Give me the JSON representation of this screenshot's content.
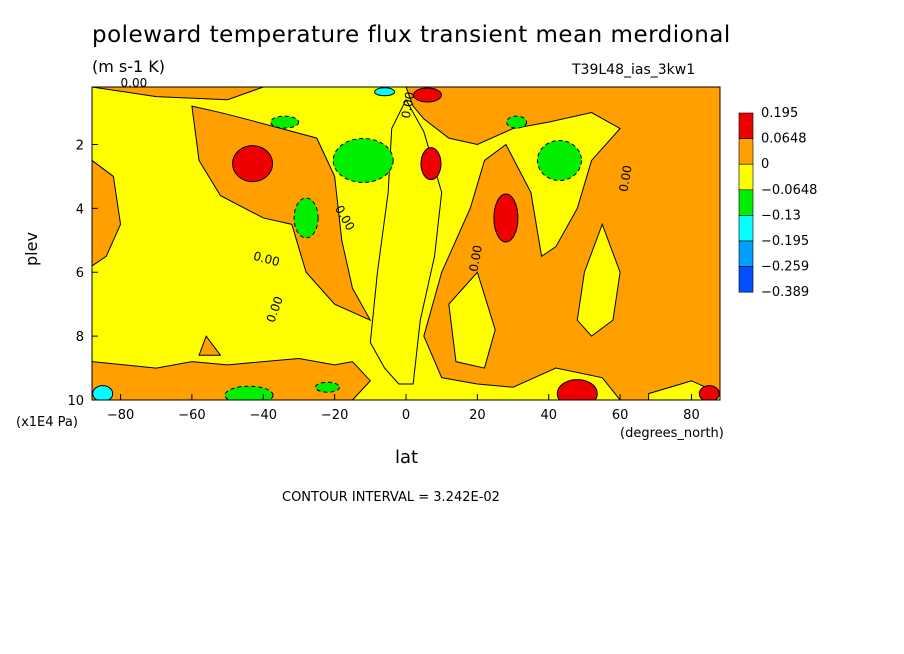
{
  "chart_data": {
    "type": "heatmap",
    "title": "poleward temperature flux transient mean merdional",
    "units": "(m s-1 K)",
    "run_label": "T39L48_ias_3kw1",
    "xlabel": "lat",
    "ylabel": "plev",
    "x_units_label": "(degrees_north)",
    "y_units_label": "(x1E4 Pa)",
    "xlim": [
      -88,
      88
    ],
    "ylim": [
      0.2,
      10
    ],
    "x_ticks": [
      -80,
      -60,
      -40,
      -20,
      0,
      20,
      40,
      60,
      80
    ],
    "x_tick_labels": [
      "-80",
      "-60",
      "-40",
      "-20",
      "0",
      "20",
      "40",
      "60",
      "80"
    ],
    "y_ticks": [
      2,
      4,
      6,
      8,
      10
    ],
    "y_tick_labels": [
      "2",
      "4",
      "6",
      "8",
      "10"
    ],
    "y_inverted": true,
    "contour_interval_note": "CONTOUR INTERVAL = 3.242E-02",
    "contour_labels": [
      "0.00",
      "0.00",
      "0.00",
      "0.00",
      "0.00",
      "0.00",
      "0.00"
    ],
    "legend": {
      "placement": "right",
      "levels": [
        "0.195",
        "0.0648",
        "0",
        "-0.0648",
        "-0.13",
        "-0.195",
        "-0.259",
        "-0.389"
      ],
      "colors": [
        "#ee0000",
        "#ffa000",
        "#ffff00",
        "#00ee00",
        "#00ffff",
        "#00a0ff",
        "#0050ff"
      ]
    },
    "regions": [
      {
        "level": "positive",
        "color": "#ffa000",
        "center": [
          -48,
          3.0
        ],
        "note": "orange lobe"
      },
      {
        "level": "strong_positive",
        "color": "#ee0000",
        "center": [
          -43,
          2.6
        ]
      },
      {
        "level": "strong_positive",
        "color": "#ee0000",
        "center": [
          28,
          4.3
        ]
      },
      {
        "level": "strong_positive",
        "color": "#ee0000",
        "center": [
          7,
          2.6
        ]
      },
      {
        "level": "strong_positive",
        "color": "#ee0000",
        "center": [
          48,
          9.7
        ]
      },
      {
        "level": "strong_positive",
        "color": "#ee0000",
        "center": [
          6,
          0.4
        ]
      },
      {
        "level": "negative",
        "color": "#00ee00",
        "center": [
          -12,
          2.5
        ]
      },
      {
        "level": "negative",
        "color": "#00ee00",
        "center": [
          43,
          2.5
        ]
      },
      {
        "level": "negative",
        "color": "#00ee00",
        "center": [
          -28,
          4.2
        ]
      },
      {
        "level": "negative",
        "color": "#00ee00",
        "center": [
          -44,
          9.8
        ]
      },
      {
        "level": "negative",
        "color": "#00ee00",
        "center": [
          -34,
          1.4
        ]
      },
      {
        "level": "strong_negative",
        "color": "#00ffff",
        "center": [
          -85,
          9.8
        ]
      },
      {
        "level": "strong_negative",
        "color": "#00ffff",
        "center": [
          -5,
          0.4
        ]
      }
    ]
  }
}
